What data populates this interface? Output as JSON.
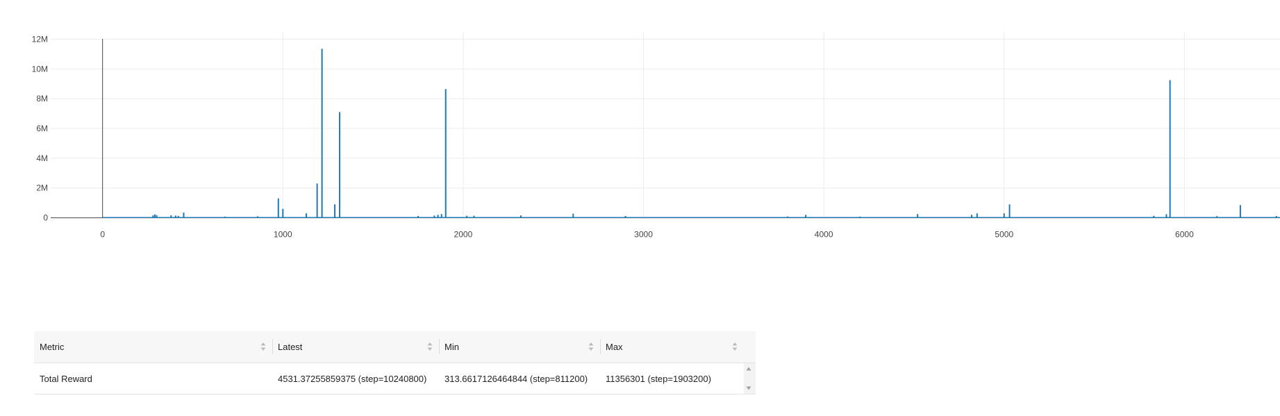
{
  "chart_data": {
    "type": "line",
    "title": "",
    "xlabel": "",
    "ylabel": "",
    "xlim": [
      -380,
      6530
    ],
    "ylim": [
      -300000,
      12300000
    ],
    "x_ticks": [
      0,
      1000,
      2000,
      3000,
      4000,
      5000,
      6000
    ],
    "x_tick_labels": [
      "0",
      "1000",
      "2000",
      "3000",
      "4000",
      "5000",
      "6000"
    ],
    "y_ticks": [
      0,
      2000000,
      4000000,
      6000000,
      8000000,
      10000000,
      12000000
    ],
    "y_tick_labels": [
      "0",
      "2M",
      "4M",
      "6M",
      "8M",
      "10M",
      "12M"
    ],
    "grid": true,
    "line_color": "#1f77b4",
    "series": [
      {
        "baseline": 15000,
        "points": [
          [
            0,
            15000
          ],
          [
            280,
            160000
          ],
          [
            290,
            230000
          ],
          [
            300,
            180000
          ],
          [
            380,
            170000
          ],
          [
            405,
            150000
          ],
          [
            420,
            130000
          ],
          [
            450,
            350000
          ],
          [
            680,
            80000
          ],
          [
            860,
            100000
          ],
          [
            975,
            1300000
          ],
          [
            1000,
            600000
          ],
          [
            1130,
            300000
          ],
          [
            1190,
            2300000
          ],
          [
            1217,
            11356301
          ],
          [
            1288,
            900000
          ],
          [
            1315,
            7100000
          ],
          [
            1750,
            120000
          ],
          [
            1840,
            150000
          ],
          [
            1860,
            200000
          ],
          [
            1880,
            250000
          ],
          [
            1903,
            8650000
          ],
          [
            2020,
            130000
          ],
          [
            2060,
            140000
          ],
          [
            2320,
            160000
          ],
          [
            2610,
            280000
          ],
          [
            2900,
            120000
          ],
          [
            3800,
            90000
          ],
          [
            3900,
            200000
          ],
          [
            4200,
            80000
          ],
          [
            4520,
            250000
          ],
          [
            4820,
            200000
          ],
          [
            4850,
            300000
          ],
          [
            5000,
            300000
          ],
          [
            5030,
            900000
          ],
          [
            5830,
            130000
          ],
          [
            5900,
            240000
          ],
          [
            5920,
            9250000
          ],
          [
            6180,
            110000
          ],
          [
            6310,
            850000
          ],
          [
            6510,
            120000
          ]
        ]
      }
    ]
  },
  "table": {
    "headers": [
      "Metric",
      "Latest",
      "Min",
      "Max"
    ],
    "rows": [
      {
        "metric": "Total Reward",
        "latest": "4531.37255859375 (step=10240800)",
        "min": "313.6617126464844 (step=811200)",
        "max": "11356301 (step=1903200)"
      }
    ]
  },
  "colors": {
    "grid": "#ebebeb",
    "axis": "#444444",
    "series": "#1f77b4",
    "header_bg": "#f7f7f7"
  }
}
